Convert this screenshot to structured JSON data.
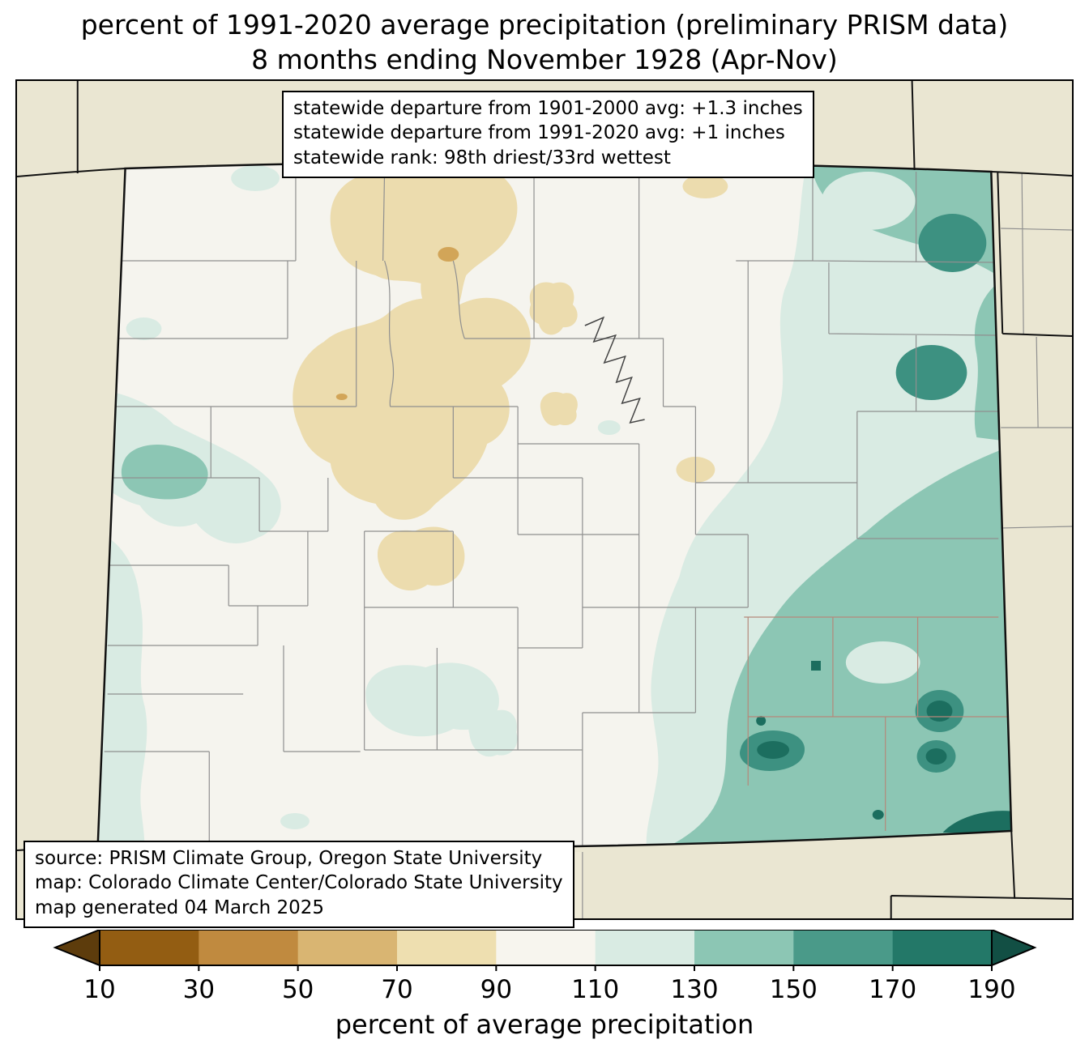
{
  "title": {
    "line1": "percent of 1991-2020 average precipitation (preliminary PRISM data)",
    "line2": "8 months ending November 1928 (Apr-Nov)"
  },
  "stats_box": {
    "lines": [
      "statewide departure from 1901-2000 avg: +1.3 inches",
      "statewide departure from 1991-2020 avg: +1 inches",
      "statewide rank: 98th driest/33rd wettest"
    ]
  },
  "source_box": {
    "lines": [
      "source: PRISM Climate Group, Oregon State University",
      "map: Colorado Climate Center/Colorado State University",
      "map generated 04 March 2025"
    ]
  },
  "colorbar": {
    "xlabel": "percent of average precipitation",
    "ticks": [
      "10",
      "30",
      "50",
      "70",
      "90",
      "110",
      "130",
      "150",
      "170",
      "190"
    ],
    "under_color": "#5d3c0c",
    "over_color": "#124f44",
    "segment_colors": [
      "#935d12",
      "#c08a3f",
      "#d9b572",
      "#eedfb0",
      "#f7f5ee",
      "#d9ebe3",
      "#8cc6b4",
      "#4a9a89",
      "#237868"
    ]
  },
  "map": {
    "palette": {
      "outside": "#eae6d2",
      "cream_outside": "#f0edda",
      "state_base": "#f5f4ee",
      "tan_50_70": "#d2a558",
      "tan_70_90": "#ecdcae",
      "teal_110_130": "#d9ebe3",
      "teal_130_150": "#8cc6b4",
      "teal_150_170": "#3d9181",
      "teal_170_190": "#1c6e5f"
    }
  }
}
